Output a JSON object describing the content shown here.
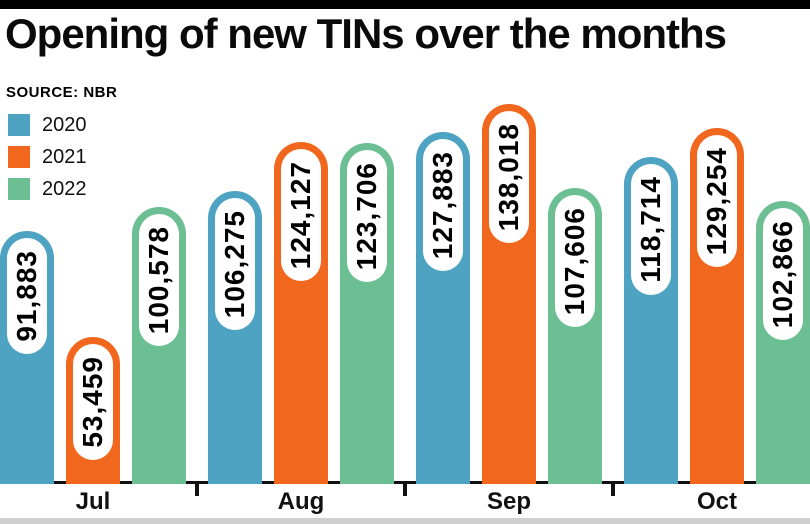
{
  "title": "Opening of new TINs over the months",
  "source": "SOURCE: NBR",
  "legend": [
    {
      "label": "2020",
      "color": "#4EA3C3"
    },
    {
      "label": "2021",
      "color": "#F2671E"
    },
    {
      "label": "2022",
      "color": "#6CBE93"
    }
  ],
  "chart_data": {
    "type": "bar",
    "title": "Opening of new TINs over the months",
    "source_note": "SOURCE: NBR",
    "categories": [
      "Jul",
      "Aug",
      "Sep",
      "Oct"
    ],
    "series": [
      {
        "name": "2020",
        "color": "#4EA3C3",
        "values": [
          91883,
          106275,
          127883,
          118714
        ],
        "labels": [
          "91,883",
          "106,275",
          "127,883",
          "118,714"
        ]
      },
      {
        "name": "2021",
        "color": "#F2671E",
        "values": [
          53459,
          124127,
          138018,
          129254
        ],
        "labels": [
          "53,459",
          "124,127",
          "138,018",
          "129,254"
        ]
      },
      {
        "name": "2022",
        "color": "#6CBE93",
        "values": [
          100578,
          123706,
          107606,
          102866
        ],
        "labels": [
          "100,578",
          "123,706",
          "107,606",
          "102,866"
        ]
      }
    ],
    "ylim": [
      0,
      140000
    ],
    "grid": false,
    "legend_position": "top-left",
    "value_label_style": "rotated-pill-inside-bar"
  }
}
